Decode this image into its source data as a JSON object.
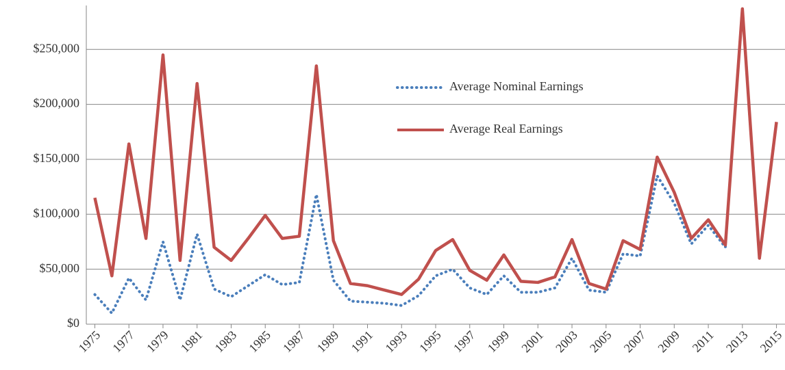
{
  "chart_data": {
    "type": "line",
    "x": [
      1975,
      1976,
      1977,
      1978,
      1979,
      1980,
      1981,
      1982,
      1983,
      1984,
      1985,
      1986,
      1987,
      1988,
      1989,
      1990,
      1991,
      1992,
      1993,
      1994,
      1995,
      1996,
      1997,
      1998,
      1999,
      2000,
      2001,
      2002,
      2003,
      2004,
      2005,
      2006,
      2007,
      2008,
      2009,
      2010,
      2011,
      2012,
      2013,
      2014,
      2015
    ],
    "series": [
      {
        "name": "Average Nominal Earnings",
        "color": "#4a7ebb",
        "dashed": true,
        "values": [
          27000,
          10000,
          42000,
          22000,
          75000,
          22000,
          82000,
          32000,
          25000,
          35000,
          45000,
          36000,
          38000,
          118000,
          40000,
          21000,
          20000,
          19000,
          17000,
          26000,
          44000,
          50000,
          33000,
          27000,
          44000,
          29000,
          29000,
          33000,
          60000,
          31000,
          29000,
          64000,
          62000,
          135000,
          110000,
          73000,
          90000,
          70000,
          287000,
          60000,
          184000
        ]
      },
      {
        "name": "Average Real Earnings",
        "color": "#c0504d",
        "dashed": false,
        "values": [
          115000,
          44000,
          164000,
          78000,
          245000,
          58000,
          219000,
          70000,
          58000,
          78000,
          99000,
          78000,
          80000,
          235000,
          76000,
          37000,
          35000,
          31000,
          27000,
          41000,
          67000,
          77000,
          49000,
          40000,
          63000,
          39000,
          38000,
          43000,
          77000,
          37000,
          32000,
          76000,
          68000,
          152000,
          120000,
          78000,
          95000,
          72000,
          287000,
          60000,
          184000
        ]
      }
    ],
    "xlim": [
      1974.5,
      2015.5
    ],
    "xticks": [
      1975,
      1977,
      1979,
      1981,
      1983,
      1985,
      1987,
      1989,
      1991,
      1993,
      1995,
      1997,
      1999,
      2001,
      2003,
      2005,
      2007,
      2009,
      2011,
      2013,
      2015
    ],
    "ylim": [
      0,
      290000
    ],
    "yticks": [
      {
        "value": 0,
        "label": "$0"
      },
      {
        "value": 50000,
        "label": "$50,000"
      },
      {
        "value": 100000,
        "label": "$100,000"
      },
      {
        "value": 150000,
        "label": "$150,000"
      },
      {
        "value": 200000,
        "label": "$200,000"
      },
      {
        "value": 250000,
        "label": "$250,000"
      }
    ],
    "grid": true
  }
}
